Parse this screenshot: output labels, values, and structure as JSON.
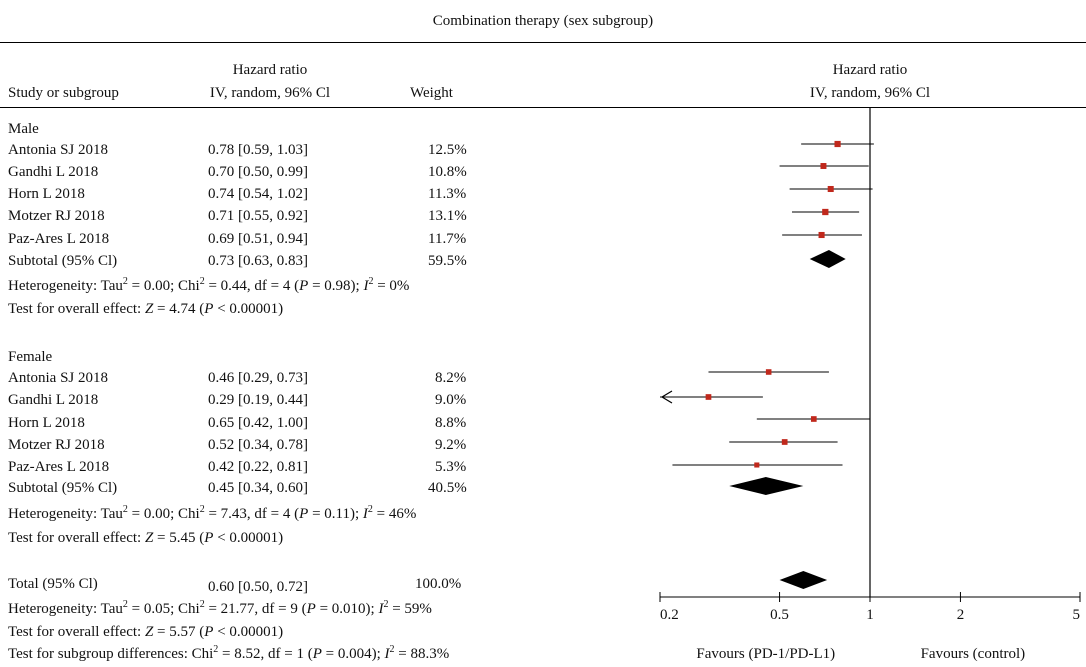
{
  "title": "Combination therapy (sex subgroup)",
  "columns": {
    "study": "Study or subgroup",
    "hr_top": "Hazard ratio",
    "hr_sub": "IV, random, 96% Cl",
    "weight": "Weight",
    "plot_top": "Hazard ratio",
    "plot_sub": "IV, random, 96% Cl"
  },
  "groups": [
    {
      "name": "Male",
      "studies": [
        {
          "study": "Antonia SJ 2018",
          "ci_text": "0.78 [0.59, 1.03]",
          "weight": "12.5%"
        },
        {
          "study": "Gandhi L 2018",
          "ci_text": "0.70 [0.50, 0.99]",
          "weight": "10.8%"
        },
        {
          "study": "Horn L 2018",
          "ci_text": "0.74 [0.54, 1.02]",
          "weight": "11.3%"
        },
        {
          "study": "Motzer RJ 2018",
          "ci_text": "0.71 [0.55, 0.92]",
          "weight": "13.1%"
        },
        {
          "study": "Paz-Ares L 2018",
          "ci_text": "0.69 [0.51, 0.94]",
          "weight": "11.7%"
        }
      ],
      "subtotal": {
        "label": "Subtotal (95% Cl)",
        "ci_text": "0.73 [0.63, 0.83]",
        "weight": "59.5%"
      },
      "heterogeneity": {
        "tau2": "0.00",
        "chi2": "0.44",
        "df": "4",
        "p": "0.98",
        "i2": "0%"
      },
      "overall": {
        "z": "4.74",
        "p": "< 0.00001"
      }
    },
    {
      "name": "Female",
      "studies": [
        {
          "study": "Antonia SJ 2018",
          "ci_text": "0.46 [0.29, 0.73]",
          "weight": "8.2%"
        },
        {
          "study": "Gandhi L 2018",
          "ci_text": "0.29 [0.19, 0.44]",
          "weight": "9.0%"
        },
        {
          "study": "Horn L 2018",
          "ci_text": "0.65 [0.42, 1.00]",
          "weight": "8.8%"
        },
        {
          "study": "Motzer RJ 2018",
          "ci_text": "0.52 [0.34, 0.78]",
          "weight": "9.2%"
        },
        {
          "study": "Paz-Ares L 2018",
          "ci_text": "0.42 [0.22, 0.81]",
          "weight": "5.3%"
        }
      ],
      "subtotal": {
        "label": "Subtotal (95% Cl)",
        "ci_text": "0.45 [0.34, 0.60]",
        "weight": "40.5%"
      },
      "heterogeneity": {
        "tau2": "0.00",
        "chi2": "7.43",
        "df": "4",
        "p": "0.11",
        "i2": "46%"
      },
      "overall": {
        "z": "5.45",
        "p": "< 0.00001"
      }
    }
  ],
  "total": {
    "label": "Total (95% Cl)",
    "ci_text": "0.60 [0.50, 0.72]",
    "weight": "100.0%"
  },
  "total_heterogeneity": {
    "tau2": "0.05",
    "chi2": "21.77",
    "df": "9",
    "p": "0.010",
    "i2": "59%"
  },
  "total_overall": {
    "z": "5.57",
    "p": "< 0.00001"
  },
  "subgroup_diff": {
    "chi2": "8.52",
    "df": "1",
    "p": "0.004",
    "i2": "88.3%"
  },
  "colors": {
    "marker": "#c0281c",
    "line": "#000000"
  },
  "chart_data": {
    "type": "forest",
    "x_scale": "log",
    "xlim": [
      0.2,
      5
    ],
    "ticks": [
      0.2,
      0.5,
      1,
      2,
      5
    ],
    "tick_labels": [
      "0.2",
      "0.5",
      "1",
      "2",
      "5"
    ],
    "reference_line": 1,
    "favours_left": "Favours (PD-1/PD-L1)",
    "favours_right": "Favours (control)",
    "studies": [
      {
        "group": "Male",
        "hr": 0.78,
        "lo": 0.59,
        "hi": 1.03,
        "weight": 12.5
      },
      {
        "group": "Male",
        "hr": 0.7,
        "lo": 0.5,
        "hi": 0.99,
        "weight": 10.8
      },
      {
        "group": "Male",
        "hr": 0.74,
        "lo": 0.54,
        "hi": 1.02,
        "weight": 11.3
      },
      {
        "group": "Male",
        "hr": 0.71,
        "lo": 0.55,
        "hi": 0.92,
        "weight": 13.1
      },
      {
        "group": "Male",
        "hr": 0.69,
        "lo": 0.51,
        "hi": 0.94,
        "weight": 11.7
      },
      {
        "group": "Female",
        "hr": 0.46,
        "lo": 0.29,
        "hi": 0.73,
        "weight": 8.2
      },
      {
        "group": "Female",
        "hr": 0.29,
        "lo": 0.19,
        "hi": 0.44,
        "weight": 9.0
      },
      {
        "group": "Female",
        "hr": 0.65,
        "lo": 0.42,
        "hi": 1.0,
        "weight": 8.8
      },
      {
        "group": "Female",
        "hr": 0.52,
        "lo": 0.34,
        "hi": 0.78,
        "weight": 9.2
      },
      {
        "group": "Female",
        "hr": 0.42,
        "lo": 0.22,
        "hi": 0.81,
        "weight": 5.3
      }
    ],
    "diamonds": [
      {
        "label": "Male subtotal",
        "hr": 0.73,
        "lo": 0.63,
        "hi": 0.83
      },
      {
        "label": "Female subtotal",
        "hr": 0.45,
        "lo": 0.34,
        "hi": 0.6
      },
      {
        "label": "Total",
        "hr": 0.6,
        "lo": 0.5,
        "hi": 0.72
      }
    ]
  }
}
